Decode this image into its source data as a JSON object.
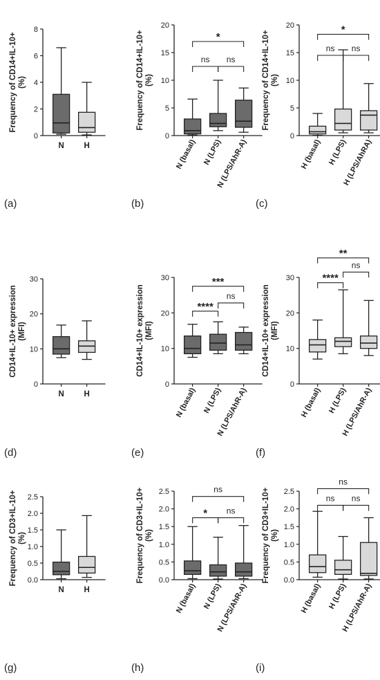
{
  "figure": {
    "panel_letters": [
      "(a)",
      "(b)",
      "(c)",
      "(d)",
      "(e)",
      "(f)",
      "(g)",
      "(h)",
      "(i)"
    ]
  },
  "colors": {
    "dark_box": "#6b6b6b",
    "light_box": "#d9d9d9",
    "line": "#222222"
  },
  "chart_data": [
    {
      "type": "box",
      "panel": "(a)",
      "ylabel": "Frequency of CD14+IL-10+ (%)",
      "ylim": [
        0,
        8
      ],
      "yticks": [
        0,
        2,
        4,
        6,
        8
      ],
      "categories": [
        "N",
        "H"
      ],
      "boxes": [
        {
          "min": 0.1,
          "q1": 0.2,
          "median": 0.95,
          "q3": 3.1,
          "max": 6.6,
          "fill": "dark"
        },
        {
          "min": 0.05,
          "q1": 0.25,
          "median": 0.6,
          "q3": 1.75,
          "max": 4.0,
          "fill": "light"
        }
      ],
      "comparisons": []
    },
    {
      "type": "box",
      "panel": "(b)",
      "ylabel": "Frequency of CD14+IL-10+ (%)",
      "ylim": [
        0,
        20
      ],
      "yticks": [
        0,
        5,
        10,
        15,
        20
      ],
      "categories": [
        "N (basal)",
        "N (LPS)",
        "N (LPS/AhR-A)"
      ],
      "boxes": [
        {
          "min": 0.1,
          "q1": 0.3,
          "median": 0.9,
          "q3": 3.0,
          "max": 6.6,
          "fill": "dark"
        },
        {
          "min": 0.9,
          "q1": 1.6,
          "median": 2.2,
          "q3": 4.0,
          "max": 10.0,
          "fill": "dark"
        },
        {
          "min": 0.6,
          "q1": 1.5,
          "median": 2.6,
          "q3": 6.4,
          "max": 8.6,
          "fill": "dark"
        }
      ],
      "comparisons": [
        {
          "from": 0,
          "to": 1,
          "label": "ns",
          "level": 12.5
        },
        {
          "from": 1,
          "to": 2,
          "label": "ns",
          "level": 12.5
        },
        {
          "from": 0,
          "to": 2,
          "label": "*",
          "level": 17.0
        }
      ]
    },
    {
      "type": "box",
      "panel": "(c)",
      "ylabel": "Frequency of CD14+IL-10+ (%)",
      "ylim": [
        0,
        20
      ],
      "yticks": [
        0,
        5,
        10,
        15,
        20
      ],
      "categories": [
        "H (basal)",
        "H (LPS)",
        "H (LPS/AhRA)"
      ],
      "boxes": [
        {
          "min": 0.05,
          "q1": 0.3,
          "median": 0.7,
          "q3": 1.7,
          "max": 4.0,
          "fill": "light"
        },
        {
          "min": 0.5,
          "q1": 1.0,
          "median": 2.2,
          "q3": 4.8,
          "max": 15.5,
          "fill": "light"
        },
        {
          "min": 0.5,
          "q1": 1.0,
          "median": 3.7,
          "q3": 4.5,
          "max": 9.4,
          "fill": "light"
        }
      ],
      "comparisons": [
        {
          "from": 0,
          "to": 1,
          "label": "ns",
          "level": 14.5
        },
        {
          "from": 1,
          "to": 2,
          "label": "ns",
          "level": 14.5
        },
        {
          "from": 0,
          "to": 2,
          "label": "*",
          "level": 18.3
        }
      ]
    },
    {
      "type": "box",
      "panel": "(d)",
      "ylabel": "CD14+IL-10+ expression (MFI)",
      "ylim": [
        0,
        30
      ],
      "yticks": [
        0,
        10,
        20,
        30
      ],
      "categories": [
        "N",
        "H"
      ],
      "boxes": [
        {
          "min": 7.5,
          "q1": 8.5,
          "median": 10.0,
          "q3": 13.5,
          "max": 16.8,
          "fill": "dark"
        },
        {
          "min": 7.0,
          "q1": 9.0,
          "median": 10.8,
          "q3": 12.3,
          "max": 18.0,
          "fill": "light"
        }
      ],
      "comparisons": []
    },
    {
      "type": "box",
      "panel": "(e)",
      "ylabel": "CD14+IL-10+ expression (MFI)",
      "ylim": [
        0,
        30
      ],
      "yticks": [
        0,
        10,
        20,
        30
      ],
      "categories": [
        "N (basal)",
        "N (LPS)",
        "N (LPS/AhR-A)"
      ],
      "boxes": [
        {
          "min": 7.5,
          "q1": 8.5,
          "median": 10.0,
          "q3": 13.5,
          "max": 16.8,
          "fill": "dark"
        },
        {
          "min": 8.5,
          "q1": 9.5,
          "median": 11.5,
          "q3": 14.0,
          "max": 17.5,
          "fill": "dark"
        },
        {
          "min": 8.5,
          "q1": 9.5,
          "median": 11.0,
          "q3": 14.5,
          "max": 16.0,
          "fill": "dark"
        }
      ],
      "comparisons": [
        {
          "from": 0,
          "to": 1,
          "label": "****",
          "level": 20.5
        },
        {
          "from": 1,
          "to": 2,
          "label": "ns",
          "level": 22.8
        },
        {
          "from": 0,
          "to": 2,
          "label": "***",
          "level": 27.5
        }
      ]
    },
    {
      "type": "box",
      "panel": "(f)",
      "ylabel": "CD14+IL-10+ expression (MFI)",
      "ylim": [
        0,
        30
      ],
      "yticks": [
        0,
        10,
        20,
        30
      ],
      "categories": [
        "H (basal)",
        "H (LPS)",
        "H (LPS/AhR-A)"
      ],
      "boxes": [
        {
          "min": 7.0,
          "q1": 9.0,
          "median": 11.0,
          "q3": 12.5,
          "max": 18.0,
          "fill": "light"
        },
        {
          "min": 8.5,
          "q1": 10.5,
          "median": 12.0,
          "q3": 13.0,
          "max": 26.5,
          "fill": "light"
        },
        {
          "min": 8.0,
          "q1": 10.0,
          "median": 11.5,
          "q3": 13.5,
          "max": 23.5,
          "fill": "light"
        }
      ],
      "comparisons": [
        {
          "from": 0,
          "to": 1,
          "label": "****",
          "level": 28.5
        },
        {
          "from": 1,
          "to": 2,
          "label": "ns",
          "level": 31.5
        },
        {
          "from": 0,
          "to": 2,
          "label": "**",
          "level": 35.5
        }
      ]
    },
    {
      "type": "box",
      "panel": "(g)",
      "ylabel": "Frequency of CD3+IL-10+ (%)",
      "ylim": [
        0,
        2.5
      ],
      "yticks": [
        0.0,
        0.5,
        1.0,
        1.5,
        2.0,
        2.5
      ],
      "categories": [
        "N",
        "H"
      ],
      "boxes": [
        {
          "min": 0.03,
          "q1": 0.15,
          "median": 0.25,
          "q3": 0.53,
          "max": 1.5,
          "fill": "dark"
        },
        {
          "min": 0.07,
          "q1": 0.2,
          "median": 0.37,
          "q3": 0.7,
          "max": 1.93,
          "fill": "light"
        }
      ],
      "comparisons": []
    },
    {
      "type": "box",
      "panel": "(h)",
      "ylabel": "Frequency of CD3+IL-10+ (%)",
      "ylim": [
        0,
        2.5
      ],
      "yticks": [
        0.0,
        0.5,
        1.0,
        1.5,
        2.0,
        2.5
      ],
      "categories": [
        "N (basal)",
        "N (LPS)",
        "N (LPS/AhR-A)"
      ],
      "boxes": [
        {
          "min": 0.03,
          "q1": 0.15,
          "median": 0.25,
          "q3": 0.53,
          "max": 1.5,
          "fill": "dark"
        },
        {
          "min": 0.02,
          "q1": 0.1,
          "median": 0.22,
          "q3": 0.42,
          "max": 1.2,
          "fill": "dark"
        },
        {
          "min": 0.03,
          "q1": 0.1,
          "median": 0.22,
          "q3": 0.47,
          "max": 1.53,
          "fill": "dark"
        }
      ],
      "comparisons": [
        {
          "from": 0,
          "to": 1,
          "label": "*",
          "level": 1.75
        },
        {
          "from": 1,
          "to": 2,
          "label": "ns",
          "level": 1.75
        },
        {
          "from": 0,
          "to": 2,
          "label": "ns",
          "level": 2.35
        }
      ]
    },
    {
      "type": "box",
      "panel": "(i)",
      "ylabel": "Frequency of CD3+IL-10+ (%)",
      "ylim": [
        0,
        2.5
      ],
      "yticks": [
        0.0,
        0.5,
        1.0,
        1.5,
        2.0,
        2.5
      ],
      "categories": [
        "H (basal)",
        "H (LPS)",
        "H (LPS/AhR-A)"
      ],
      "boxes": [
        {
          "min": 0.07,
          "q1": 0.2,
          "median": 0.37,
          "q3": 0.7,
          "max": 1.93,
          "fill": "light"
        },
        {
          "min": 0.02,
          "q1": 0.15,
          "median": 0.28,
          "q3": 0.55,
          "max": 1.22,
          "fill": "light"
        },
        {
          "min": 0.02,
          "q1": 0.12,
          "median": 0.18,
          "q3": 1.05,
          "max": 1.75,
          "fill": "light"
        }
      ],
      "comparisons": [
        {
          "from": 0,
          "to": 1,
          "label": "ns",
          "level": 2.1
        },
        {
          "from": 1,
          "to": 2,
          "label": "ns",
          "level": 2.1
        },
        {
          "from": 0,
          "to": 2,
          "label": "ns",
          "level": 2.57
        }
      ]
    }
  ]
}
